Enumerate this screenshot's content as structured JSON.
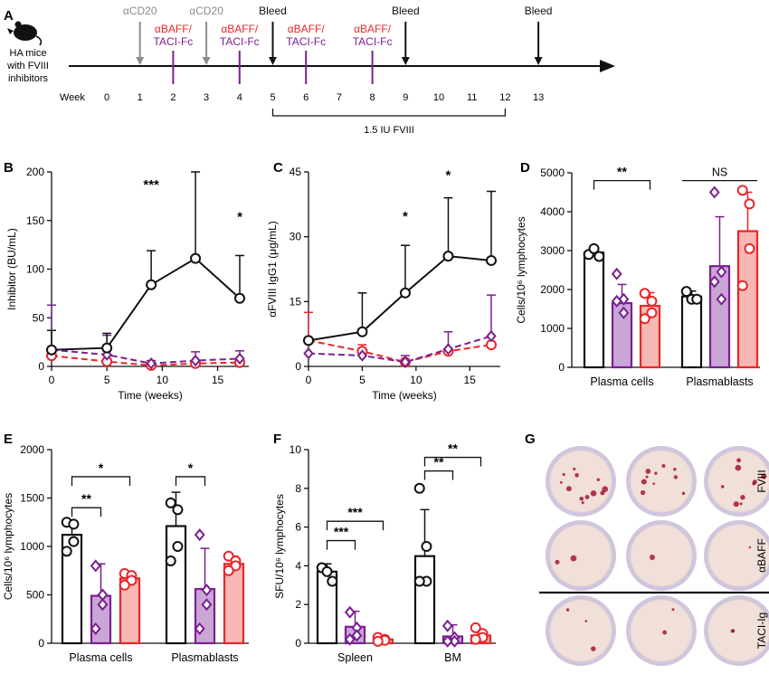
{
  "colors": {
    "black": "#111111",
    "purple": "#7a1f8f",
    "red": "#e8262a",
    "gray": "#8c8c8c",
    "purple_fill": "#c9a6d6",
    "red_fill": "#f7b8b3",
    "plate_rim": "#cfc6de",
    "plate_bg": "#f1dfd9"
  },
  "panel_letters": [
    "A",
    "B",
    "C",
    "D",
    "E",
    "F",
    "G"
  ],
  "timeline": {
    "mouse_label": [
      "HA mice",
      "with FVIII",
      "inhibitors"
    ],
    "week_label": "Week",
    "weeks": [
      "0",
      "1",
      "2",
      "3",
      "4",
      "5",
      "6",
      "7",
      "8",
      "9",
      "10",
      "11",
      "12",
      "13"
    ],
    "events": [
      {
        "week": 1,
        "kind": "down",
        "color": "gray",
        "lines": [
          "αCD20"
        ]
      },
      {
        "week": 2,
        "kind": "bar",
        "color": "purple",
        "lines": [
          "αBAFF/",
          "TACI-Fc"
        ]
      },
      {
        "week": 3,
        "kind": "down",
        "color": "gray",
        "lines": [
          "αCD20"
        ]
      },
      {
        "week": 4,
        "kind": "bar",
        "color": "purple",
        "lines": [
          "αBAFF/",
          "TACI-Fc"
        ]
      },
      {
        "week": 5,
        "kind": "down",
        "color": "black",
        "lines": [
          "Bleed"
        ]
      },
      {
        "week": 6,
        "kind": "bar",
        "color": "purple",
        "lines": [
          "αBAFF/",
          "TACI-Fc"
        ]
      },
      {
        "week": 8,
        "kind": "bar",
        "color": "purple",
        "lines": [
          "αBAFF/",
          "TACI-Fc"
        ]
      },
      {
        "week": 9,
        "kind": "down",
        "color": "black",
        "lines": [
          "Bleed"
        ]
      },
      {
        "week": 13,
        "kind": "down",
        "color": "black",
        "lines": [
          "Bleed"
        ]
      }
    ],
    "bracket": {
      "from": 5,
      "to": 12,
      "label": "1.5 IU FVIII"
    }
  },
  "chart_data": [
    {
      "panel": "B",
      "type": "line",
      "xlabel": "Time (weeks)",
      "ylabel": "Inhibitor (BU/mL)",
      "xlim": [
        0,
        17
      ],
      "xticks": [
        0,
        5,
        10,
        15
      ],
      "ylim": [
        0,
        200
      ],
      "yticks": [
        0,
        50,
        100,
        150,
        200
      ],
      "series": [
        {
          "color": "black",
          "style": "solid",
          "marker": "circle",
          "points": [
            [
              0,
              17,
              20
            ],
            [
              5,
              19,
              15
            ],
            [
              9,
              84,
              35
            ],
            [
              13,
              111,
              89
            ],
            [
              17,
              70,
              44
            ]
          ]
        },
        {
          "color": "purple",
          "style": "dashed",
          "marker": "diamond",
          "points": [
            [
              0,
              17,
              46
            ],
            [
              5,
              12,
              20
            ],
            [
              9,
              3,
              3
            ],
            [
              13,
              6,
              9
            ],
            [
              17,
              8,
              8
            ]
          ]
        },
        {
          "color": "red",
          "style": "dashed",
          "marker": "circle",
          "points": [
            [
              0,
              11,
              8
            ],
            [
              5,
              5,
              3
            ],
            [
              9,
              1,
              1
            ],
            [
              13,
              3,
              3
            ],
            [
              17,
              4,
              4
            ]
          ]
        }
      ],
      "annotations": [
        {
          "x": 9,
          "y": 188,
          "text": "***"
        },
        {
          "x": 17,
          "y": 155,
          "text": "*"
        }
      ]
    },
    {
      "panel": "C",
      "type": "line",
      "xlabel": "Time (weeks)",
      "ylabel": "αFVIII IgG1 (μg/mL)",
      "xlim": [
        0,
        17
      ],
      "xticks": [
        0,
        5,
        10,
        15
      ],
      "ylim": [
        0,
        45
      ],
      "yticks": [
        0,
        15,
        30,
        45
      ],
      "series": [
        {
          "color": "black",
          "style": "solid",
          "marker": "circle",
          "points": [
            [
              0,
              6,
              0
            ],
            [
              5,
              8,
              9
            ],
            [
              9,
              17,
              11
            ],
            [
              13,
              25.5,
              13.5
            ],
            [
              17,
              24.5,
              16
            ]
          ]
        },
        {
          "color": "purple",
          "style": "dashed",
          "marker": "diamond",
          "points": [
            [
              0,
              3,
              0
            ],
            [
              5,
              2.5,
              0
            ],
            [
              9,
              1,
              1.5
            ],
            [
              13,
              4,
              4
            ],
            [
              17,
              7,
              9.5
            ]
          ]
        },
        {
          "color": "red",
          "style": "dashed",
          "marker": "circle",
          "points": [
            [
              0,
              6,
              6.5
            ],
            [
              5,
              3.5,
              1.5
            ],
            [
              9,
              1,
              0
            ],
            [
              13,
              3.5,
              0
            ],
            [
              17,
              5,
              0
            ]
          ]
        }
      ],
      "annotations": [
        {
          "x": 9,
          "y": 35,
          "text": "*"
        },
        {
          "x": 13,
          "y": 44.5,
          "text": "*"
        }
      ]
    },
    {
      "panel": "D",
      "type": "bar",
      "ylabel": "Cells/10⁶ lymphocytes",
      "ylim": [
        0,
        5000
      ],
      "yticks": [
        0,
        1000,
        2000,
        3000,
        4000,
        5000
      ],
      "groups": [
        {
          "name": "Plasma cells",
          "bars": [
            {
              "color": "black",
              "value": 2950,
              "err": 150,
              "marker": "circle",
              "points": [
                2900,
                3050,
                2850
              ]
            },
            {
              "color": "purple",
              "value": 1650,
              "err": 480,
              "marker": "diamond",
              "points": [
                2400,
                1750,
                1400,
                1700
              ]
            },
            {
              "color": "red",
              "value": 1580,
              "err": 340,
              "marker": "circle",
              "points": [
                1900,
                1700,
                1400,
                1250
              ]
            }
          ]
        },
        {
          "name": "Plasmablasts",
          "bars": [
            {
              "color": "black",
              "value": 1820,
              "err": 140,
              "marker": "circle",
              "points": [
                1950,
                1750,
                1750
              ]
            },
            {
              "color": "purple",
              "value": 2600,
              "err": 1270,
              "marker": "diamond",
              "points": [
                4500,
                2450,
                1750,
                2200
              ]
            },
            {
              "color": "red",
              "value": 3500,
              "err": 1000,
              "marker": "circle",
              "points": [
                4550,
                4200,
                3050,
                2100
              ]
            }
          ]
        }
      ],
      "annotations": [
        {
          "group": 0,
          "from": 0,
          "to": 2,
          "y": 4800,
          "text": "**"
        },
        {
          "group": 1,
          "from": 0,
          "to": 2,
          "y": 4800,
          "text": "NS"
        }
      ]
    },
    {
      "panel": "E",
      "type": "bar",
      "ylabel": "Cells/10⁶ lymphocytes",
      "ylim": [
        0,
        2000
      ],
      "yticks": [
        0,
        500,
        1000,
        1500,
        2000
      ],
      "groups": [
        {
          "name": "Plasma cells",
          "bars": [
            {
              "color": "black",
              "value": 1120,
              "err": 150,
              "marker": "circle",
              "points": [
                1250,
                1230,
                1050,
                950
              ]
            },
            {
              "color": "purple",
              "value": 490,
              "err": 330,
              "marker": "diamond",
              "points": [
                800,
                500,
                400,
                150
              ]
            },
            {
              "color": "red",
              "value": 670,
              "err": 60,
              "marker": "circle",
              "points": [
                720,
                700,
                650,
                600
              ]
            }
          ]
        },
        {
          "name": "Plasmablasts",
          "bars": [
            {
              "color": "black",
              "value": 1210,
              "err": 350,
              "marker": "circle",
              "points": [
                1450,
                1380,
                1000,
                850
              ]
            },
            {
              "color": "purple",
              "value": 560,
              "err": 420,
              "marker": "diamond",
              "points": [
                1120,
                550,
                400,
                150
              ]
            },
            {
              "color": "red",
              "value": 820,
              "err": 80,
              "marker": "circle",
              "points": [
                900,
                850,
                800,
                750
              ]
            }
          ]
        }
      ],
      "annotations": [
        {
          "group": 0,
          "from": 0,
          "to": 1,
          "y": 1400,
          "text": "**"
        },
        {
          "group": 0,
          "from": 0,
          "to": 2,
          "y": 1720,
          "text": "*"
        },
        {
          "group": 1,
          "from": 0,
          "to": 1,
          "y": 1720,
          "text": "*"
        }
      ]
    },
    {
      "panel": "F",
      "type": "bar",
      "ylabel": "SFU/10⁶ lymphocytes",
      "ylim": [
        0,
        10
      ],
      "yticks": [
        0,
        2,
        4,
        6,
        8,
        10
      ],
      "groups": [
        {
          "name": "Spleen",
          "bars": [
            {
              "color": "black",
              "value": 3.7,
              "err": 0.4,
              "marker": "circle",
              "points": [
                3.9,
                3.7,
                3.2
              ]
            },
            {
              "color": "purple",
              "value": 0.85,
              "err": 0.8,
              "marker": "diamond",
              "points": [
                1.6,
                0.8,
                0.4,
                0.2
              ]
            },
            {
              "color": "red",
              "value": 0.2,
              "err": 0.1,
              "marker": "circle",
              "points": [
                0.3,
                0.2,
                0.15,
                0.1
              ]
            }
          ]
        },
        {
          "name": "BM",
          "bars": [
            {
              "color": "black",
              "value": 4.5,
              "err": 2.4,
              "marker": "circle",
              "points": [
                8.0,
                5.0,
                3.2,
                3.2
              ]
            },
            {
              "color": "purple",
              "value": 0.35,
              "err": 0.6,
              "marker": "diamond",
              "points": [
                0.9,
                0.3,
                0.1,
                0.1
              ]
            },
            {
              "color": "red",
              "value": 0.4,
              "err": 0.3,
              "marker": "circle",
              "points": [
                0.8,
                0.5,
                0.3,
                0.2
              ]
            }
          ]
        }
      ],
      "annotations": [
        {
          "group": 0,
          "from": 0,
          "to": 1,
          "y": 5.3,
          "text": "***"
        },
        {
          "group": 0,
          "from": 0,
          "to": 2,
          "y": 6.3,
          "text": "***"
        },
        {
          "group": 1,
          "from": 0,
          "to": 1,
          "y": 8.9,
          "text": "**"
        },
        {
          "group": 1,
          "from": 0,
          "to": 2,
          "y": 9.6,
          "text": "**"
        }
      ]
    }
  ],
  "plates": {
    "row_labels": [
      "FVIII",
      "αBAFF",
      "TACI-Ig"
    ],
    "spot_counts": [
      [
        12,
        10,
        9
      ],
      [
        2,
        1,
        1
      ],
      [
        3,
        2,
        2
      ]
    ]
  }
}
